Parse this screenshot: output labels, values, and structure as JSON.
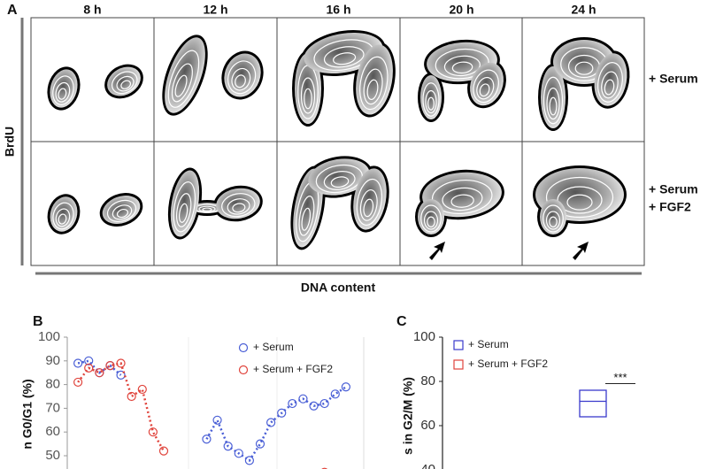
{
  "panel_a": {
    "label": "A",
    "columns": [
      "8 h",
      "12 h",
      "16 h",
      "20 h",
      "24 h"
    ],
    "rows": [
      [
        "+ Serum"
      ],
      [
        "+ Serum",
        "+ FGF2"
      ]
    ],
    "y_label": "BrdU",
    "x_label": "DNA content"
  },
  "chart_data": [
    {
      "type": "scatter",
      "label": "B",
      "y_label": "n G0/G1 (%)",
      "xlim": [
        0,
        27
      ],
      "ylim": [
        0,
        100
      ],
      "yticks": [
        50,
        60,
        70,
        80,
        90,
        100
      ],
      "legend": "upper right",
      "series": [
        {
          "name": "+ Serum",
          "color": "#4a5fd6",
          "x": [
            1,
            2,
            3,
            4,
            5,
            13,
            14,
            15,
            16,
            17,
            18,
            19,
            20,
            21,
            22,
            23,
            24,
            25,
            26
          ],
          "values": [
            89,
            90,
            85,
            88,
            84,
            57,
            65,
            54,
            51,
            48,
            55,
            64,
            68,
            72,
            74,
            71,
            72,
            76,
            79
          ]
        },
        {
          "name": "+ Serum + FGF2",
          "color": "#e0443c",
          "x": [
            1,
            2,
            3,
            4,
            5,
            6,
            7,
            8,
            9,
            24
          ],
          "values": [
            81,
            87,
            85,
            88,
            89,
            75,
            78,
            60,
            52,
            43
          ]
        }
      ]
    },
    {
      "type": "box",
      "label": "C",
      "y_label": "s in G2/M (%)",
      "ylim": [
        0,
        100
      ],
      "yticks": [
        40,
        60,
        80,
        100
      ],
      "legend": "upper left",
      "series": [
        {
          "name": "+ Serum",
          "color": "#3a3acc",
          "q1": 64,
          "median": 71,
          "q3": 76
        },
        {
          "name": "+ Serum + FGF2",
          "color": "#e0443c"
        }
      ],
      "annotations": [
        {
          "text": "***",
          "y": 79
        }
      ]
    }
  ]
}
